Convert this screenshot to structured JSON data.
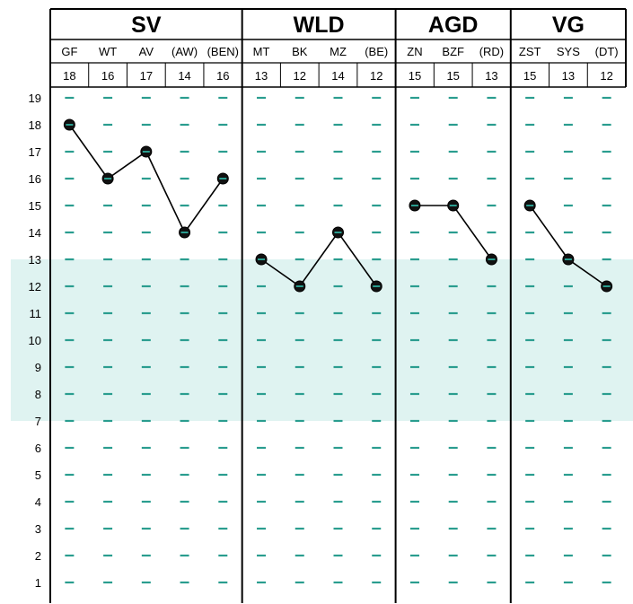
{
  "chart_data": {
    "type": "line",
    "groups": [
      {
        "title": "SV",
        "categories": [
          "GF",
          "WT",
          "AV",
          "(AW)",
          "(BEN)"
        ],
        "values": [
          18,
          16,
          17,
          14,
          16
        ]
      },
      {
        "title": "WLD",
        "categories": [
          "MT",
          "BK",
          "MZ",
          "(BE)"
        ],
        "values": [
          13,
          12,
          14,
          12
        ]
      },
      {
        "title": "AGD",
        "categories": [
          "ZN",
          "BZF",
          "(RD)"
        ],
        "values": [
          15,
          15,
          13
        ]
      },
      {
        "title": "VG",
        "categories": [
          "ZST",
          "SYS",
          "(DT)"
        ],
        "values": [
          15,
          13,
          12
        ]
      }
    ],
    "y_ticks": [
      "19",
      "18",
      "17",
      "16",
      "15",
      "14",
      "13",
      "12",
      "11",
      "10",
      "9",
      "8",
      "7",
      "6",
      "5",
      "4",
      "3",
      "2",
      "1"
    ],
    "ylim": [
      1,
      19
    ],
    "shaded_band": [
      7,
      13
    ],
    "colors": {
      "band": "#dff3f1",
      "dash": "#2a9d8f",
      "marker_fill": "#111111",
      "line": "#000000"
    },
    "grid": false,
    "legend": "none"
  }
}
